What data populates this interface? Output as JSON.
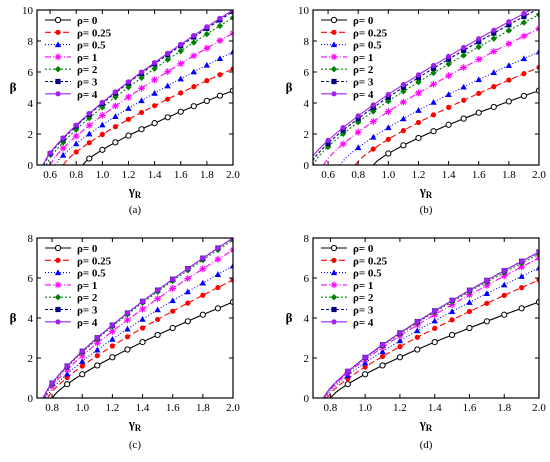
{
  "chart_data": [
    {
      "type": "line",
      "caption": "(a)",
      "xlabel": "γ",
      "xlabel_sub": "R",
      "ylabel": "β",
      "xlim": [
        0.5,
        2.0
      ],
      "ylim": [
        0,
        10
      ],
      "xticks": [
        "0.6",
        "0.8",
        "1.0",
        "1.2",
        "1.4",
        "1.6",
        "1.8",
        "2.0"
      ],
      "xtick_values": [
        0.6,
        0.8,
        1.0,
        1.2,
        1.4,
        1.6,
        1.8,
        2.0
      ],
      "yticks": [
        "0",
        "2",
        "4",
        "6",
        "8",
        "10"
      ],
      "ytick_values": [
        0,
        2,
        4,
        6,
        8,
        10
      ],
      "legend": "top-left",
      "series": [
        {
          "name": "ρ= 0",
          "x0": 0.85,
          "y_end": 4.8
        },
        {
          "name": "ρ= 0.25",
          "x0": 0.7,
          "y_end": 6.2
        },
        {
          "name": "ρ= 0.5",
          "x0": 0.64,
          "y_end": 7.3
        },
        {
          "name": "ρ= 1",
          "x0": 0.6,
          "y_end": 8.5
        },
        {
          "name": "ρ= 2",
          "x0": 0.57,
          "y_end": 9.5
        },
        {
          "name": "ρ= 3",
          "x0": 0.55,
          "y_end": 9.9
        },
        {
          "name": "ρ= 4",
          "x0": 0.545,
          "y_end": 10.0
        }
      ]
    },
    {
      "type": "line",
      "caption": "(b)",
      "xlabel": "γ",
      "xlabel_sub": "R",
      "ylabel": "β",
      "xlim": [
        0.5,
        2.0
      ],
      "ylim": [
        0,
        10
      ],
      "xticks": [
        "0.6",
        "0.8",
        "1.0",
        "1.2",
        "1.4",
        "1.6",
        "1.8",
        "2.0"
      ],
      "xtick_values": [
        0.6,
        0.8,
        1.0,
        1.2,
        1.4,
        1.6,
        1.8,
        2.0
      ],
      "yticks": [
        "0",
        "2",
        "4",
        "6",
        "8",
        "10"
      ],
      "ytick_values": [
        0,
        2,
        4,
        6,
        8,
        10
      ],
      "legend": "top-left",
      "series": [
        {
          "name": "ρ= 0",
          "x0": 0.9,
          "y_end": 4.8
        },
        {
          "name": "ρ= 0.25",
          "x0": 0.78,
          "y_end": 6.3
        },
        {
          "name": "ρ= 0.5",
          "x0": 0.68,
          "y_end": 7.3
        },
        {
          "name": "ρ= 1",
          "x0": 0.57,
          "y_end": 8.8
        },
        {
          "name": "ρ= 2",
          "x0": 0.5,
          "y_end": 9.7
        },
        {
          "name": "ρ= 3",
          "x0": 0.48,
          "y_end": 10.1
        },
        {
          "name": "ρ= 4",
          "x0": 0.46,
          "y_end": 10.3
        }
      ]
    },
    {
      "type": "line",
      "caption": "(c)",
      "xlabel": "γ",
      "xlabel_sub": "R",
      "ylabel": "β",
      "xlim": [
        0.7,
        2.0
      ],
      "ylim": [
        0,
        8
      ],
      "xticks": [
        "0.8",
        "1.0",
        "1.2",
        "1.4",
        "1.6",
        "1.8",
        "2.0"
      ],
      "xtick_values": [
        0.8,
        1.0,
        1.2,
        1.4,
        1.6,
        1.8,
        2.0
      ],
      "yticks": [
        "0",
        "2",
        "4",
        "6",
        "8"
      ],
      "ytick_values": [
        0,
        2,
        4,
        6,
        8
      ],
      "legend": "top-left",
      "series": [
        {
          "name": "ρ= 0",
          "x0": 0.8,
          "y_end": 4.8
        },
        {
          "name": "ρ= 0.25",
          "x0": 0.77,
          "y_end": 5.9
        },
        {
          "name": "ρ= 0.5",
          "x0": 0.76,
          "y_end": 6.6
        },
        {
          "name": "ρ= 1",
          "x0": 0.75,
          "y_end": 7.4
        },
        {
          "name": "ρ= 2",
          "x0": 0.745,
          "y_end": 7.9
        },
        {
          "name": "ρ= 3",
          "x0": 0.74,
          "y_end": 8.0
        },
        {
          "name": "ρ= 4",
          "x0": 0.74,
          "y_end": 8.0
        }
      ]
    },
    {
      "type": "line",
      "caption": "(d)",
      "xlabel": "γ",
      "xlabel_sub": "R",
      "ylabel": "β",
      "xlim": [
        0.7,
        2.0
      ],
      "ylim": [
        0,
        8
      ],
      "xticks": [
        "0.8",
        "1.0",
        "1.2",
        "1.4",
        "1.6",
        "1.8",
        "2.0"
      ],
      "xtick_values": [
        0.8,
        1.0,
        1.2,
        1.4,
        1.6,
        1.8,
        2.0
      ],
      "yticks": [
        "0",
        "2",
        "4",
        "6",
        "8"
      ],
      "ytick_values": [
        0,
        2,
        4,
        6,
        8
      ],
      "legend": "top-left",
      "series": [
        {
          "name": "ρ= 0",
          "x0": 0.8,
          "y_end": 4.8
        },
        {
          "name": "ρ= 0.25",
          "x0": 0.78,
          "y_end": 5.9
        },
        {
          "name": "ρ= 0.5",
          "x0": 0.77,
          "y_end": 6.5
        },
        {
          "name": "ρ= 1",
          "x0": 0.765,
          "y_end": 7.0
        },
        {
          "name": "ρ= 2",
          "x0": 0.76,
          "y_end": 7.2
        },
        {
          "name": "ρ= 3",
          "x0": 0.76,
          "y_end": 7.3
        },
        {
          "name": "ρ= 4",
          "x0": 0.76,
          "y_end": 7.3
        }
      ]
    }
  ],
  "series_styles": [
    {
      "color": "#000000",
      "dash": "",
      "marker": "open-circle"
    },
    {
      "color": "#ff0000",
      "dash": "6,3",
      "marker": "circle"
    },
    {
      "color": "#0000ff",
      "dash": "1,2",
      "marker": "triangle"
    },
    {
      "color": "#ff00ff",
      "dash": "6,2,1,2",
      "marker": "star"
    },
    {
      "color": "#008000",
      "dash": "2,2",
      "marker": "diamond"
    },
    {
      "color": "#000080",
      "dash": "3,2",
      "marker": "square"
    },
    {
      "color": "#a020f0",
      "dash": "",
      "marker": "circle"
    }
  ]
}
